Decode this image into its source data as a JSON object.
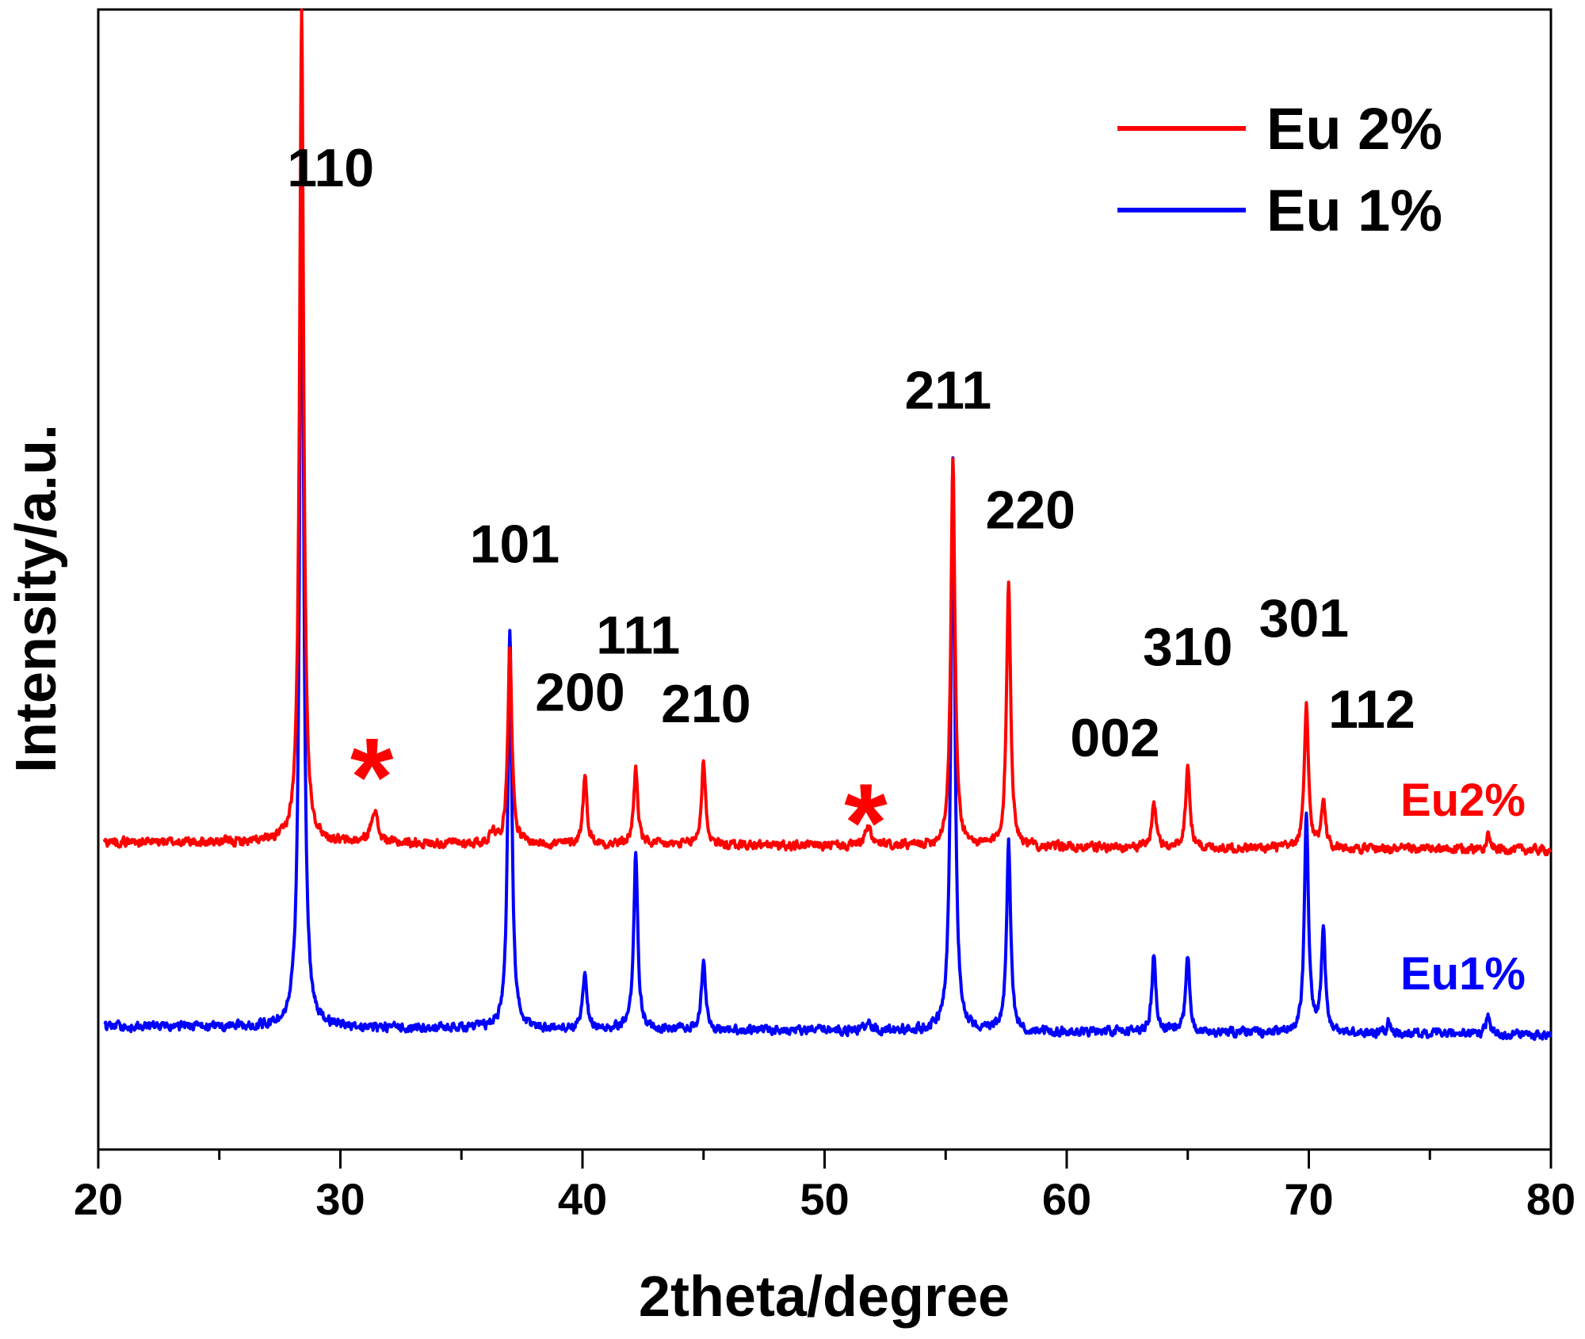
{
  "chart_data": {
    "type": "line",
    "title": "",
    "xlabel": "2theta/degree",
    "ylabel": "Intensity/a.u.",
    "xlim": [
      20,
      80
    ],
    "ylim": [
      0,
      100
    ],
    "y_ticks_labeled": false,
    "grid": false,
    "legend_position": "top-right",
    "x_ticks": [
      20,
      30,
      40,
      50,
      60,
      70,
      80
    ],
    "x_tick_labels": [
      "20",
      "30",
      "40",
      "50",
      "60",
      "70",
      "80"
    ],
    "series": [
      {
        "name": "Eu 2%",
        "label": "Eu2%",
        "color": "#ff0000",
        "baseline": 27.0,
        "peaks": [
          {
            "x": 28.4,
            "height": 73.0,
            "width": 0.1
          },
          {
            "x": 31.4,
            "height": 3.0,
            "width": 0.15
          },
          {
            "x": 36.3,
            "height": 1.2,
            "width": 0.12
          },
          {
            "x": 37.0,
            "height": 17.5,
            "width": 0.1
          },
          {
            "x": 40.1,
            "height": 6.0,
            "width": 0.1
          },
          {
            "x": 42.2,
            "height": 6.7,
            "width": 0.1
          },
          {
            "x": 45.0,
            "height": 7.4,
            "width": 0.1
          },
          {
            "x": 51.8,
            "height": 1.6,
            "width": 0.15
          },
          {
            "x": 55.3,
            "height": 34.0,
            "width": 0.1
          },
          {
            "x": 57.6,
            "height": 23.5,
            "width": 0.1
          },
          {
            "x": 63.6,
            "height": 4.0,
            "width": 0.1
          },
          {
            "x": 65.0,
            "height": 7.3,
            "width": 0.1
          },
          {
            "x": 69.9,
            "height": 12.5,
            "width": 0.1
          },
          {
            "x": 70.6,
            "height": 4.4,
            "width": 0.1
          },
          {
            "x": 77.4,
            "height": 1.3,
            "width": 0.1
          }
        ]
      },
      {
        "name": "Eu 1%",
        "label": "Eu1%",
        "color": "#0000ff",
        "baseline": 10.8,
        "peaks": [
          {
            "x": 28.4,
            "height": 78.0,
            "width": 0.1
          },
          {
            "x": 37.0,
            "height": 35.0,
            "width": 0.1
          },
          {
            "x": 40.1,
            "height": 4.9,
            "width": 0.1
          },
          {
            "x": 42.2,
            "height": 15.5,
            "width": 0.1
          },
          {
            "x": 45.0,
            "height": 6.0,
            "width": 0.1
          },
          {
            "x": 51.8,
            "height": 0.8,
            "width": 0.15
          },
          {
            "x": 55.3,
            "height": 50.0,
            "width": 0.1
          },
          {
            "x": 57.6,
            "height": 16.4,
            "width": 0.1
          },
          {
            "x": 63.6,
            "height": 6.7,
            "width": 0.1
          },
          {
            "x": 65.0,
            "height": 6.7,
            "width": 0.1
          },
          {
            "x": 69.9,
            "height": 19.0,
            "width": 0.1
          },
          {
            "x": 70.6,
            "height": 8.7,
            "width": 0.1
          },
          {
            "x": 73.3,
            "height": 1.0,
            "width": 0.1
          },
          {
            "x": 77.4,
            "height": 1.6,
            "width": 0.1
          }
        ]
      }
    ],
    "annotations": [
      {
        "text": "110",
        "x": 29.6,
        "y": 84.5
      },
      {
        "text": "101",
        "x": 37.2,
        "y": 51.5
      },
      {
        "text": "111",
        "x": 42.3,
        "y": 43.5
      },
      {
        "text": "200",
        "x": 39.9,
        "y": 38.5
      },
      {
        "text": "210",
        "x": 45.1,
        "y": 37.5
      },
      {
        "text": "211",
        "x": 55.1,
        "y": 65.0
      },
      {
        "text": "220",
        "x": 58.5,
        "y": 54.5
      },
      {
        "text": "002",
        "x": 62.0,
        "y": 34.5
      },
      {
        "text": "310",
        "x": 65.0,
        "y": 42.5
      },
      {
        "text": "301",
        "x": 69.8,
        "y": 45.0
      },
      {
        "text": "112",
        "x": 72.6,
        "y": 37.0
      }
    ],
    "markers": [
      {
        "text": "*",
        "x": 31.3,
        "y": 33.5,
        "color": "#ff0000"
      },
      {
        "text": "*",
        "x": 51.7,
        "y": 29.5,
        "color": "#ff0000"
      }
    ]
  }
}
